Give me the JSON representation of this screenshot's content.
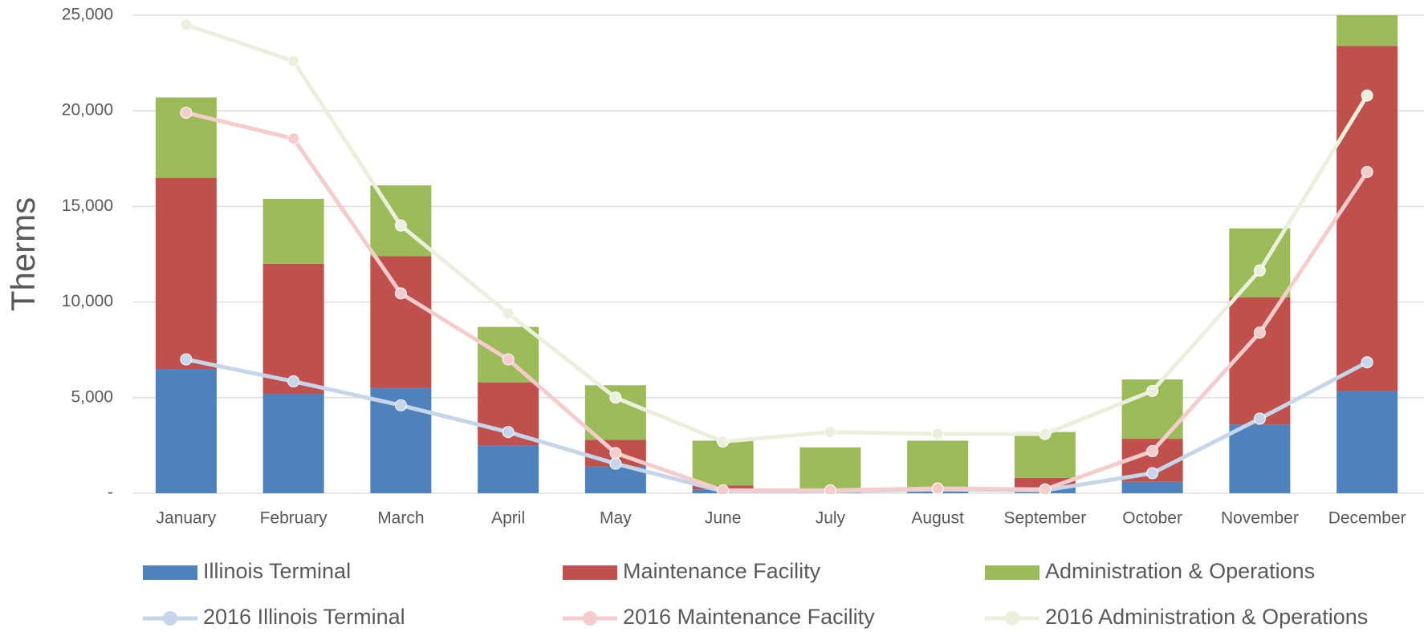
{
  "chart_data": {
    "type": "bar",
    "y_label": "Therms",
    "categories": [
      "January",
      "February",
      "March",
      "April",
      "May",
      "June",
      "July",
      "August",
      "September",
      "October",
      "November",
      "December"
    ],
    "series": [
      {
        "name": "Illinois Terminal",
        "type": "bar",
        "color": "#4f81bd",
        "values": [
          6500,
          5200,
          5500,
          2500,
          1400,
          200,
          100,
          100,
          300,
          600,
          3600,
          5350
        ]
      },
      {
        "name": "Maintenance Facility",
        "type": "bar",
        "color": "#c0504d",
        "values": [
          10000,
          6800,
          6900,
          3300,
          1400,
          200,
          100,
          100,
          500,
          2250,
          6650,
          18050
        ]
      },
      {
        "name": "Administration & Operations",
        "type": "bar",
        "color": "#9bbb59",
        "values": [
          4200,
          3400,
          3700,
          2900,
          2850,
          2350,
          2200,
          2550,
          2400,
          3100,
          3600,
          2000
        ]
      },
      {
        "name": "2016 Illinois Terminal",
        "type": "line",
        "color": "#c5d6ea",
        "values": [
          7000,
          5850,
          4600,
          3200,
          1550,
          100,
          100,
          200,
          150,
          1050,
          3900,
          6850
        ]
      },
      {
        "name": "2016 Maintenance Facility",
        "type": "line",
        "color": "#f4cccb",
        "values": [
          19900,
          18550,
          10450,
          7000,
          2100,
          150,
          150,
          250,
          200,
          2200,
          8400,
          16800
        ]
      },
      {
        "name": "2016 Administration & Operations",
        "type": "line",
        "color": "#ebf0dc",
        "values": [
          24500,
          22600,
          14000,
          9400,
          5000,
          2700,
          3200,
          3100,
          3100,
          5350,
          11650,
          20800
        ]
      }
    ],
    "ylim": [
      0,
      25000
    ],
    "yticks": [
      {
        "value": 0,
        "label": "-"
      },
      {
        "value": 5000,
        "label": "5,000"
      },
      {
        "value": 10000,
        "label": "10,000"
      },
      {
        "value": 15000,
        "label": "15,000"
      },
      {
        "value": 20000,
        "label": "20,000"
      },
      {
        "value": 25000,
        "label": "25,000"
      }
    ],
    "grid": true,
    "legend": "bottom"
  }
}
